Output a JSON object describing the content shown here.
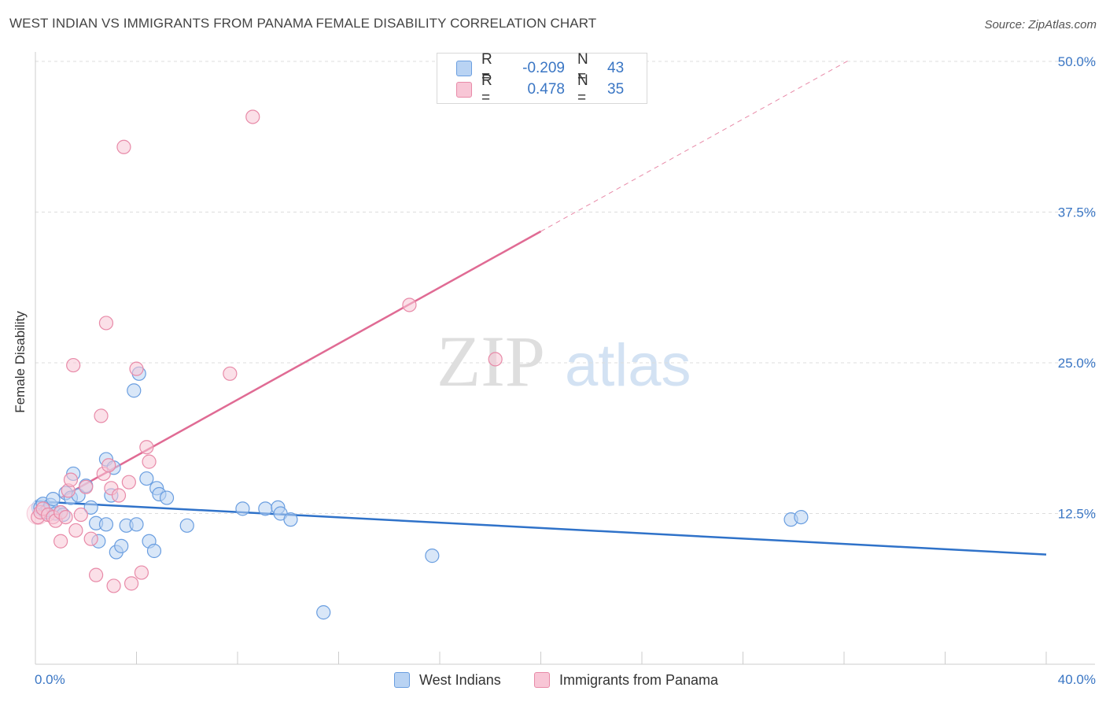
{
  "title": "WEST INDIAN VS IMMIGRANTS FROM PANAMA FEMALE DISABILITY CORRELATION CHART",
  "source": "Source: ZipAtlas.com",
  "watermark": {
    "zip": "ZIP",
    "atlas": "atlas"
  },
  "legend": {
    "r_label": "R =",
    "n_label": "N =",
    "rows": [
      {
        "r": "-0.209",
        "n": "43",
        "fill": "#b9d3f3",
        "stroke": "#6a9ee0"
      },
      {
        "r": "0.478",
        "n": "35",
        "fill": "#f8c6d6",
        "stroke": "#e88aa8"
      }
    ]
  },
  "bottom_legend": [
    "West Indians",
    "Immigrants from Panama"
  ],
  "colors": {
    "blue_fill": "#b9d3f3",
    "blue_stroke": "#6a9ee0",
    "blue_line": "#2f72c9",
    "pink_fill": "#f8c6d6",
    "pink_stroke": "#e88aa8",
    "pink_line": "#e06b94",
    "axis_text": "#3a76c4",
    "grid": "#dddddd"
  },
  "chart_data": {
    "type": "scatter",
    "title": "WEST INDIAN VS IMMIGRANTS FROM PANAMA FEMALE DISABILITY CORRELATION CHART",
    "xlabel": "",
    "ylabel": "Female Disability",
    "xlim": [
      0,
      40
    ],
    "ylim": [
      0,
      50
    ],
    "x_ticks_labels": [
      "0.0%",
      "40.0%"
    ],
    "y_ticks": [
      12.5,
      25.0,
      37.5,
      50.0
    ],
    "y_ticks_labels": [
      "12.5%",
      "25.0%",
      "37.5%",
      "50.0%"
    ],
    "grid": true,
    "legend_position": "top-center",
    "series": [
      {
        "name": "West Indians",
        "color": "#6a9ee0",
        "r": -0.209,
        "n": 43,
        "trend": {
          "x": [
            0,
            40
          ],
          "y": [
            13.5,
            9.1
          ]
        },
        "points": [
          [
            0.2,
            13.0
          ],
          [
            0.3,
            13.3
          ],
          [
            0.4,
            12.6
          ],
          [
            0.5,
            12.8
          ],
          [
            0.6,
            13.2
          ],
          [
            0.7,
            13.7
          ],
          [
            0.8,
            12.5
          ],
          [
            1.0,
            12.6
          ],
          [
            1.1,
            12.4
          ],
          [
            1.2,
            14.2
          ],
          [
            1.4,
            13.8
          ],
          [
            1.5,
            15.8
          ],
          [
            1.7,
            14.0
          ],
          [
            2.0,
            14.8
          ],
          [
            2.2,
            13.0
          ],
          [
            2.4,
            11.7
          ],
          [
            2.5,
            10.2
          ],
          [
            2.8,
            17.0
          ],
          [
            2.8,
            11.6
          ],
          [
            3.0,
            14.0
          ],
          [
            3.1,
            16.3
          ],
          [
            3.2,
            9.3
          ],
          [
            3.4,
            9.8
          ],
          [
            3.6,
            11.5
          ],
          [
            3.9,
            22.7
          ],
          [
            4.0,
            11.6
          ],
          [
            4.1,
            24.1
          ],
          [
            4.4,
            15.4
          ],
          [
            4.5,
            10.2
          ],
          [
            4.7,
            9.4
          ],
          [
            4.8,
            14.6
          ],
          [
            4.9,
            14.1
          ],
          [
            5.2,
            13.8
          ],
          [
            6.0,
            11.5
          ],
          [
            8.2,
            12.9
          ],
          [
            9.1,
            12.9
          ],
          [
            9.6,
            13.0
          ],
          [
            9.7,
            12.5
          ],
          [
            10.1,
            12.0
          ],
          [
            11.4,
            4.3
          ],
          [
            15.7,
            9.0
          ],
          [
            29.9,
            12.0
          ],
          [
            30.3,
            12.2
          ]
        ]
      },
      {
        "name": "Immigrants from Panama",
        "color": "#e88aa8",
        "r": 0.478,
        "n": 35,
        "trend": {
          "x": [
            1.0,
            20.0
          ],
          "y": [
            13.8,
            35.9
          ]
        },
        "trend_extension": {
          "x": [
            20.0,
            32.2
          ],
          "y": [
            35.9,
            50.1
          ]
        },
        "points": [
          [
            0.1,
            12.2
          ],
          [
            0.2,
            12.6
          ],
          [
            0.3,
            12.9
          ],
          [
            0.5,
            12.4
          ],
          [
            0.7,
            12.2
          ],
          [
            0.8,
            11.9
          ],
          [
            1.0,
            12.6
          ],
          [
            1.0,
            10.2
          ],
          [
            1.2,
            12.2
          ],
          [
            1.3,
            14.4
          ],
          [
            1.4,
            15.3
          ],
          [
            1.5,
            24.8
          ],
          [
            1.6,
            11.1
          ],
          [
            1.8,
            12.4
          ],
          [
            2.0,
            14.7
          ],
          [
            2.2,
            10.4
          ],
          [
            2.4,
            7.4
          ],
          [
            2.6,
            20.6
          ],
          [
            2.7,
            15.8
          ],
          [
            2.8,
            28.3
          ],
          [
            2.9,
            16.5
          ],
          [
            3.0,
            14.6
          ],
          [
            3.1,
            6.5
          ],
          [
            3.3,
            14.0
          ],
          [
            3.5,
            42.9
          ],
          [
            3.7,
            15.1
          ],
          [
            3.8,
            6.7
          ],
          [
            4.0,
            24.5
          ],
          [
            4.2,
            7.6
          ],
          [
            4.4,
            18.0
          ],
          [
            4.5,
            16.8
          ],
          [
            7.7,
            24.1
          ],
          [
            8.6,
            45.4
          ],
          [
            14.8,
            29.8
          ],
          [
            18.2,
            25.3
          ]
        ]
      }
    ]
  }
}
